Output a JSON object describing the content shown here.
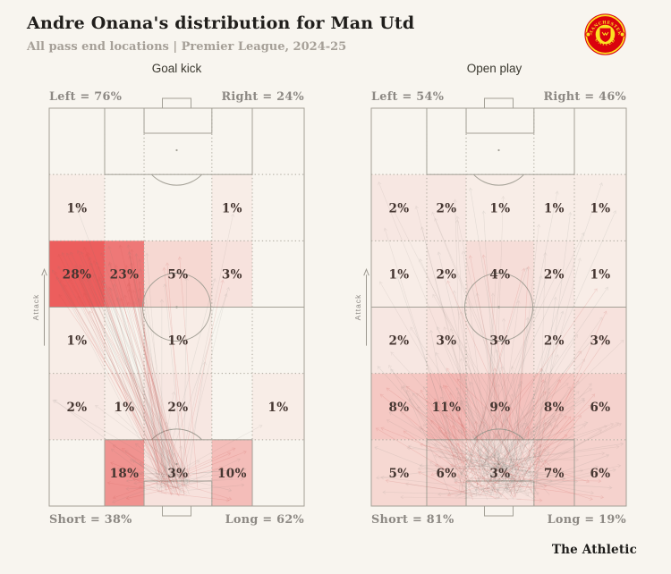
{
  "header": {
    "title": "Andre Onana's distribution for Man Utd",
    "subtitle": "All pass end locations | Premier League, 2024-25"
  },
  "crest": {
    "name": "Manchester United crest",
    "top_text": "MANCHESTER",
    "bottom_text": "UNITED",
    "red": "#da020e",
    "yellow": "#fbe122"
  },
  "footer": {
    "brand": "The Athletic"
  },
  "chart_data": [
    {
      "type": "heatmap",
      "title": "Goal kick",
      "attack_label": "Attack",
      "grid": {
        "rows_top_to_bottom": 6,
        "cols_left_to_right": 5
      },
      "values": [
        [
          null,
          null,
          null,
          null,
          null
        ],
        [
          1,
          null,
          null,
          1,
          null
        ],
        [
          28,
          23,
          5,
          3,
          null
        ],
        [
          1,
          null,
          1,
          null,
          null
        ],
        [
          2,
          1,
          2,
          null,
          1
        ],
        [
          null,
          18,
          3,
          10,
          null
        ]
      ],
      "labels": {
        "top_left": "Left = 76%",
        "top_right": "Right = 24%",
        "bottom_left": "Short = 38%",
        "bottom_right": "Long = 62%"
      }
    },
    {
      "type": "heatmap",
      "title": "Open play",
      "attack_label": "Attack",
      "grid": {
        "rows_top_to_bottom": 6,
        "cols_left_to_right": 5
      },
      "values": [
        [
          null,
          null,
          null,
          null,
          null
        ],
        [
          2,
          2,
          1,
          1,
          1
        ],
        [
          1,
          2,
          4,
          2,
          1
        ],
        [
          2,
          3,
          3,
          2,
          3
        ],
        [
          8,
          11,
          9,
          8,
          6
        ],
        [
          5,
          6,
          3,
          7,
          6
        ]
      ],
      "labels": {
        "top_left": "Left = 54%",
        "top_right": "Right = 46%",
        "bottom_left": "Short = 81%",
        "bottom_right": "Long = 19%"
      }
    }
  ],
  "style": {
    "background": "#f8f5ef",
    "heat_zero": "#f8f2ec",
    "heat_max": "#ec5e5d",
    "heat_max_value": 28,
    "pitch_line": "#a3a096",
    "grid_dotted": "#aba79c",
    "label_gray": "#8d8984",
    "cell_text": "#453631",
    "arrow_gray": "rgba(125,118,110,0.14)",
    "arrow_teal": "rgba(110,124,114,0.15)",
    "arrow_red": "rgba(205,85,78,0.20)"
  }
}
